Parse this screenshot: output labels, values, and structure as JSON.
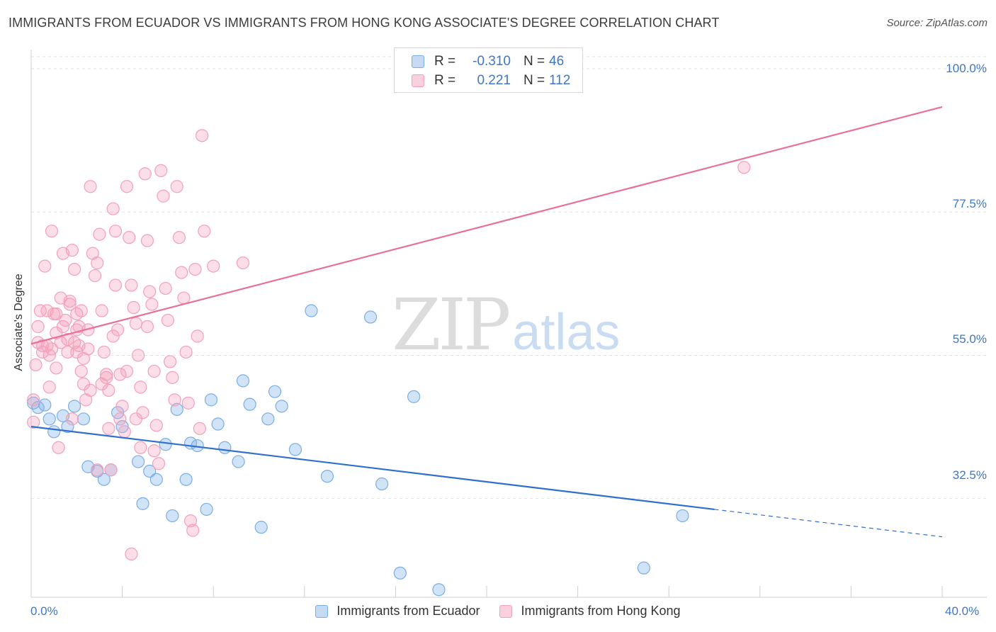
{
  "title": "IMMIGRANTS FROM ECUADOR VS IMMIGRANTS FROM HONG KONG ASSOCIATE'S DEGREE CORRELATION CHART",
  "source": "Source: ZipAtlas.com",
  "watermark": {
    "zip": "ZIP",
    "atlas": "atlas"
  },
  "legend": {
    "rows": [
      {
        "r_label": "R =",
        "r_value": "-0.310",
        "n_label": "N =",
        "n_value": "46"
      },
      {
        "r_label": "R =",
        "r_value": "0.221",
        "n_label": "N =",
        "n_value": "112"
      }
    ]
  },
  "chart_data": {
    "type": "scatter",
    "title": "IMMIGRANTS FROM ECUADOR VS IMMIGRANTS FROM HONG KONG ASSOCIATE'S DEGREE CORRELATION CHART",
    "xlabel": "",
    "ylabel": "Associate's Degree",
    "xlim": [
      0,
      40
    ],
    "ylim": [
      17,
      103
    ],
    "x_tick_labels": [
      "0.0%",
      "40.0%"
    ],
    "y_tick_labels": [
      "100.0%",
      "77.5%",
      "55.0%",
      "32.5%"
    ],
    "y_tick_values": [
      100,
      77.5,
      55,
      32.5
    ],
    "grid": true,
    "legend_position": "bottom",
    "series": [
      {
        "name": "Immigrants from Ecuador",
        "color": "#7aaee6",
        "line_color": "#2f6fce",
        "trend": {
          "x0": 0,
          "y0": 43.8,
          "x1": 30,
          "y1": 30.8,
          "dashed_to_x": 40,
          "dashed_to_y": 26.5
        },
        "points": [
          [
            0.1,
            47.5
          ],
          [
            0.6,
            47.2
          ],
          [
            0.8,
            45.0
          ],
          [
            1.0,
            43.0
          ],
          [
            1.4,
            45.5
          ],
          [
            1.6,
            43.8
          ],
          [
            1.9,
            47.0
          ],
          [
            2.3,
            45.0
          ],
          [
            2.5,
            37.5
          ],
          [
            2.9,
            36.8
          ],
          [
            3.2,
            35.5
          ],
          [
            3.5,
            37.0
          ],
          [
            3.8,
            46.0
          ],
          [
            4.0,
            43.8
          ],
          [
            4.7,
            38.3
          ],
          [
            4.9,
            31.7
          ],
          [
            5.2,
            36.8
          ],
          [
            5.5,
            35.5
          ],
          [
            5.9,
            41.0
          ],
          [
            6.2,
            29.8
          ],
          [
            6.4,
            46.5
          ],
          [
            6.8,
            35.5
          ],
          [
            7.0,
            41.2
          ],
          [
            7.3,
            40.8
          ],
          [
            7.7,
            30.8
          ],
          [
            7.9,
            48.0
          ],
          [
            8.2,
            44.2
          ],
          [
            8.5,
            40.5
          ],
          [
            9.1,
            38.3
          ],
          [
            9.3,
            51.0
          ],
          [
            9.6,
            47.3
          ],
          [
            10.1,
            28.0
          ],
          [
            10.4,
            45.0
          ],
          [
            10.7,
            49.3
          ],
          [
            11.0,
            47.0
          ],
          [
            11.6,
            40.2
          ],
          [
            12.3,
            62.0
          ],
          [
            13.0,
            36.0
          ],
          [
            14.9,
            61.0
          ],
          [
            15.4,
            34.8
          ],
          [
            16.2,
            20.8
          ],
          [
            16.8,
            48.5
          ],
          [
            17.9,
            18.2
          ],
          [
            26.9,
            21.6
          ],
          [
            28.6,
            29.8
          ],
          [
            0.3,
            46.8
          ]
        ]
      },
      {
        "name": "Immigrants from Hong Kong",
        "color": "#f3a0bb",
        "line_color": "#e8709a",
        "trend": {
          "x0": 0,
          "y0": 56.8,
          "x1": 40,
          "y1": 94.0
        },
        "points": [
          [
            0.1,
            48.0
          ],
          [
            0.1,
            44.5
          ],
          [
            0.2,
            53.5
          ],
          [
            0.3,
            57.0
          ],
          [
            0.3,
            59.5
          ],
          [
            0.4,
            62.0
          ],
          [
            0.5,
            56.5
          ],
          [
            0.5,
            55.5
          ],
          [
            0.6,
            69.0
          ],
          [
            0.7,
            62.0
          ],
          [
            0.8,
            55.0
          ],
          [
            0.8,
            50.0
          ],
          [
            0.9,
            74.5
          ],
          [
            1.0,
            61.5
          ],
          [
            1.1,
            58.5
          ],
          [
            1.1,
            53.0
          ],
          [
            1.2,
            40.5
          ],
          [
            1.3,
            64.0
          ],
          [
            1.3,
            57.0
          ],
          [
            1.4,
            71.0
          ],
          [
            1.5,
            60.5
          ],
          [
            1.6,
            57.5
          ],
          [
            1.6,
            55.5
          ],
          [
            1.7,
            63.5
          ],
          [
            1.8,
            71.5
          ],
          [
            1.9,
            68.5
          ],
          [
            2.0,
            61.5
          ],
          [
            2.1,
            59.5
          ],
          [
            2.1,
            56.5
          ],
          [
            2.2,
            52.5
          ],
          [
            2.3,
            50.5
          ],
          [
            2.4,
            48.0
          ],
          [
            2.5,
            59.0
          ],
          [
            2.5,
            56.0
          ],
          [
            2.6,
            81.5
          ],
          [
            2.7,
            71.0
          ],
          [
            2.8,
            67.5
          ],
          [
            2.9,
            69.5
          ],
          [
            3.0,
            74.0
          ],
          [
            3.1,
            62.0
          ],
          [
            3.2,
            55.5
          ],
          [
            3.3,
            52.0
          ],
          [
            3.4,
            49.5
          ],
          [
            3.5,
            37.0
          ],
          [
            3.6,
            78.0
          ],
          [
            3.7,
            74.5
          ],
          [
            3.8,
            59.0
          ],
          [
            3.9,
            52.0
          ],
          [
            4.0,
            47.0
          ],
          [
            4.1,
            43.0
          ],
          [
            4.2,
            81.5
          ],
          [
            4.3,
            73.5
          ],
          [
            4.4,
            66.0
          ],
          [
            4.5,
            62.5
          ],
          [
            4.6,
            60.0
          ],
          [
            4.7,
            55.0
          ],
          [
            4.8,
            50.0
          ],
          [
            4.9,
            46.0
          ],
          [
            5.0,
            83.5
          ],
          [
            5.1,
            73.0
          ],
          [
            5.2,
            65.0
          ],
          [
            5.3,
            63.0
          ],
          [
            5.4,
            52.5
          ],
          [
            5.5,
            44.0
          ],
          [
            5.6,
            38.0
          ],
          [
            5.7,
            84.0
          ],
          [
            5.8,
            80.0
          ],
          [
            5.9,
            65.5
          ],
          [
            6.0,
            60.5
          ],
          [
            6.1,
            54.0
          ],
          [
            6.2,
            51.5
          ],
          [
            6.3,
            48.0
          ],
          [
            6.4,
            81.5
          ],
          [
            6.5,
            73.5
          ],
          [
            6.6,
            68.0
          ],
          [
            6.7,
            64.0
          ],
          [
            6.8,
            55.5
          ],
          [
            6.9,
            47.5
          ],
          [
            7.0,
            29.0
          ],
          [
            7.1,
            27.5
          ],
          [
            7.2,
            68.5
          ],
          [
            7.3,
            58.0
          ],
          [
            7.4,
            43.5
          ],
          [
            7.5,
            89.5
          ],
          [
            7.6,
            74.5
          ],
          [
            3.3,
            51.5
          ],
          [
            3.4,
            43.5
          ],
          [
            3.9,
            45.0
          ],
          [
            4.2,
            52.5
          ],
          [
            4.6,
            45.0
          ],
          [
            5.1,
            59.5
          ],
          [
            5.4,
            40.0
          ],
          [
            1.8,
            45.0
          ],
          [
            2.6,
            49.5
          ],
          [
            2.9,
            37.0
          ],
          [
            3.1,
            50.5
          ],
          [
            3.6,
            58.0
          ],
          [
            2.2,
            62.0
          ],
          [
            1.4,
            59.5
          ],
          [
            1.9,
            57.0
          ],
          [
            2.0,
            55.5
          ],
          [
            0.7,
            56.5
          ],
          [
            0.9,
            56.0
          ],
          [
            1.1,
            61.5
          ],
          [
            1.7,
            63.0
          ],
          [
            2.3,
            54.5
          ],
          [
            3.7,
            66.0
          ],
          [
            4.8,
            40.5
          ],
          [
            4.4,
            23.8
          ],
          [
            2.0,
            59.0
          ],
          [
            31.3,
            84.5
          ],
          [
            8.0,
            69.0
          ],
          [
            9.3,
            69.5
          ]
        ]
      }
    ]
  },
  "bottom_legend": [
    "Immigrants from Ecuador",
    "Immigrants from Hong Kong"
  ]
}
